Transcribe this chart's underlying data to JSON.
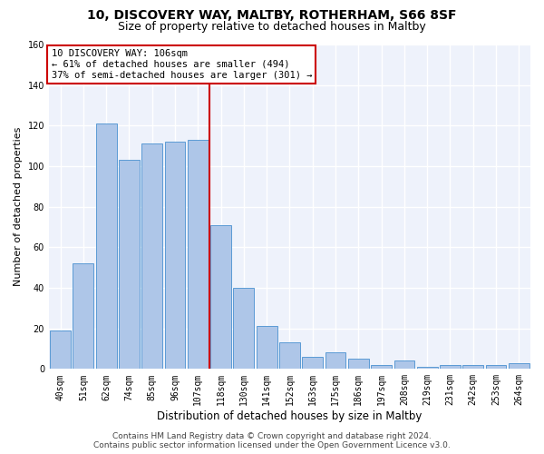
{
  "title1": "10, DISCOVERY WAY, MALTBY, ROTHERHAM, S66 8SF",
  "title2": "Size of property relative to detached houses in Maltby",
  "xlabel": "Distribution of detached houses by size in Maltby",
  "ylabel": "Number of detached properties",
  "categories": [
    "40sqm",
    "51sqm",
    "62sqm",
    "74sqm",
    "85sqm",
    "96sqm",
    "107sqm",
    "118sqm",
    "130sqm",
    "141sqm",
    "152sqm",
    "163sqm",
    "175sqm",
    "186sqm",
    "197sqm",
    "208sqm",
    "219sqm",
    "231sqm",
    "242sqm",
    "253sqm",
    "264sqm"
  ],
  "values": [
    19,
    52,
    121,
    103,
    111,
    112,
    113,
    71,
    40,
    21,
    13,
    6,
    8,
    5,
    2,
    4,
    1,
    2,
    2,
    2,
    3
  ],
  "bar_color": "#aec6e8",
  "bar_edge_color": "#5b9bd5",
  "vline_x": 6.5,
  "vline_color": "#cc0000",
  "annotation_line1": "10 DISCOVERY WAY: 106sqm",
  "annotation_line2": "← 61% of detached houses are smaller (494)",
  "annotation_line3": "37% of semi-detached houses are larger (301) →",
  "annotation_box_color": "#cc0000",
  "ylim": [
    0,
    160
  ],
  "yticks": [
    0,
    20,
    40,
    60,
    80,
    100,
    120,
    140,
    160
  ],
  "footer1": "Contains HM Land Registry data © Crown copyright and database right 2024.",
  "footer2": "Contains public sector information licensed under the Open Government Licence v3.0.",
  "background_color": "#eef2fb",
  "grid_color": "#ffffff",
  "title1_fontsize": 10,
  "title2_fontsize": 9,
  "tick_fontsize": 7,
  "ylabel_fontsize": 8,
  "xlabel_fontsize": 8.5,
  "footer_fontsize": 6.5
}
